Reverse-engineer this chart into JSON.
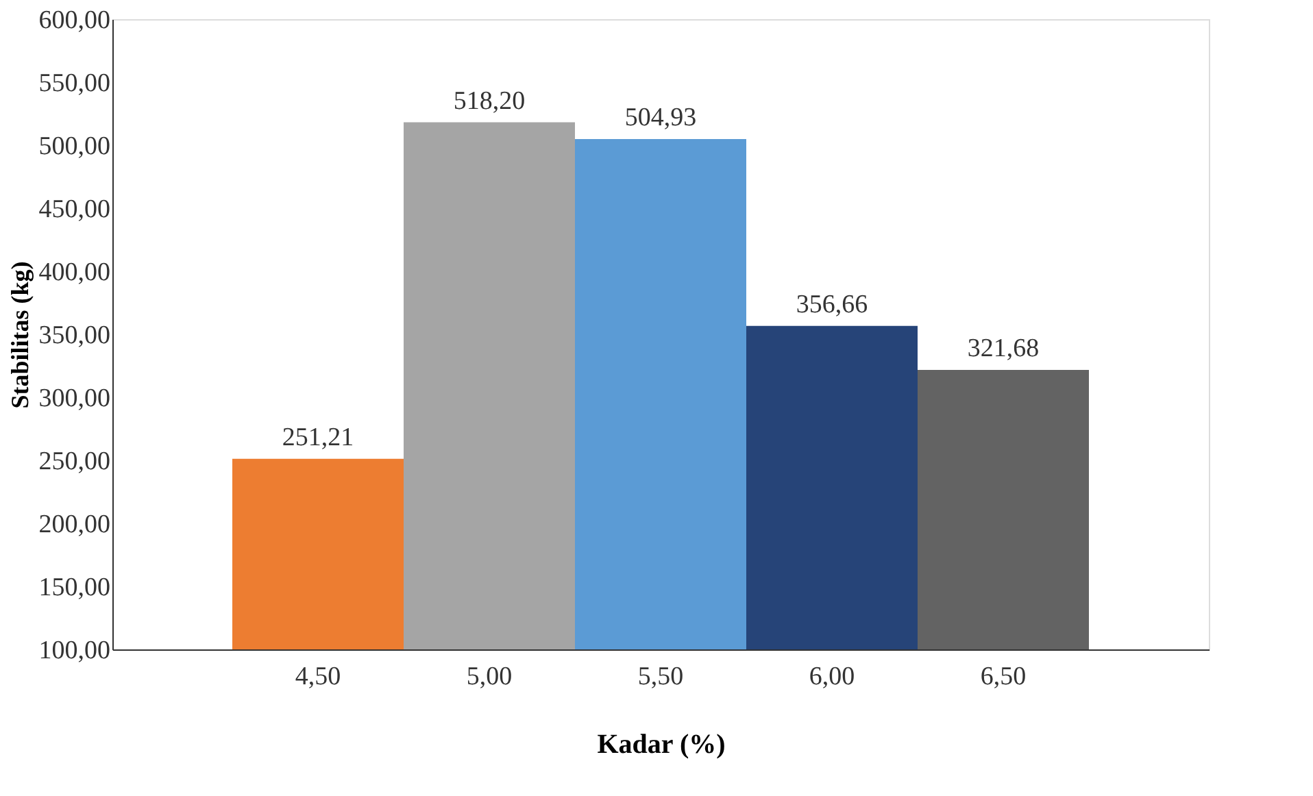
{
  "chart_data": {
    "type": "bar",
    "xlabel": "Kadar (%)",
    "ylabel": "Stabilitas (kg)",
    "categories": [
      "4,50",
      "5,00",
      "5,50",
      "6,00",
      "6,50"
    ],
    "values": [
      251.21,
      518.2,
      504.93,
      356.66,
      321.68
    ],
    "colors": [
      "#ed7d31",
      "#a5a5a5",
      "#5b9bd5",
      "#264478",
      "#636363"
    ],
    "value_labels": [
      "251,21",
      "518,20",
      "504,93",
      "356,66",
      "321,68"
    ],
    "ylim": [
      100,
      600
    ],
    "yticks": [
      {
        "value": 100,
        "label": "100,00"
      },
      {
        "value": 150,
        "label": "150,00"
      },
      {
        "value": 200,
        "label": "200,00"
      },
      {
        "value": 250,
        "label": "250,00"
      },
      {
        "value": 300,
        "label": "300,00"
      },
      {
        "value": 350,
        "label": "350,00"
      },
      {
        "value": 400,
        "label": "400,00"
      },
      {
        "value": 450,
        "label": "450,00"
      },
      {
        "value": 500,
        "label": "500,00"
      },
      {
        "value": 550,
        "label": "550,00"
      },
      {
        "value": 600,
        "label": "600,00"
      }
    ],
    "grid": false
  }
}
